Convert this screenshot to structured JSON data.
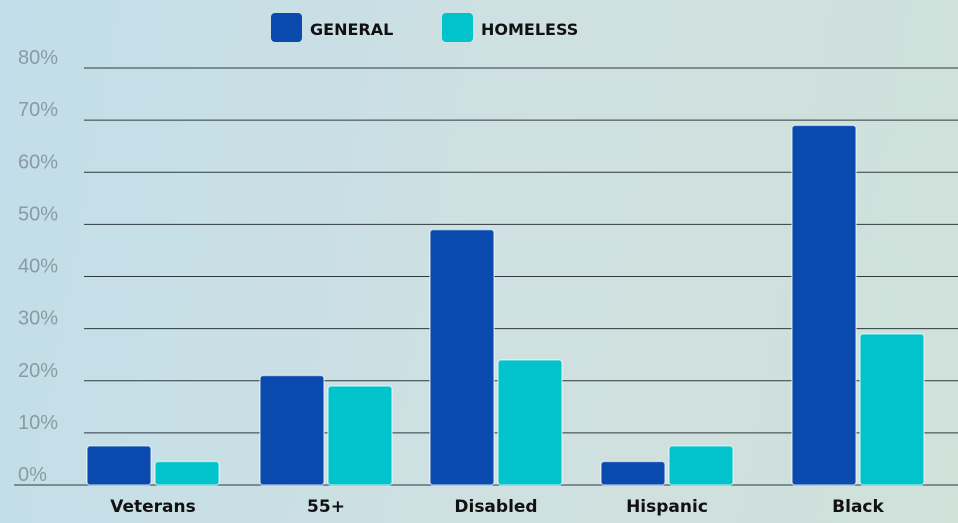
{
  "chart_data": {
    "type": "bar",
    "categories": [
      "Veterans",
      "55+",
      "Disabled",
      "Hispanic",
      "Black"
    ],
    "series": [
      {
        "name": "GENERAL",
        "color": "#0a4aae",
        "values": [
          7.5,
          21,
          49,
          4.5,
          69
        ]
      },
      {
        "name": "HOMELESS",
        "color": "#00c3cc",
        "values": [
          4.5,
          19,
          24,
          7.5,
          29
        ]
      }
    ],
    "ylim": [
      0,
      80
    ],
    "yticks": [
      {
        "value": 0,
        "label": "0%"
      },
      {
        "value": 10,
        "label": "10%"
      },
      {
        "value": 20,
        "label": "20%"
      },
      {
        "value": 30,
        "label": "30%"
      },
      {
        "value": 40,
        "label": "40%"
      },
      {
        "value": 50,
        "label": "50%"
      },
      {
        "value": 60,
        "label": "60%"
      },
      {
        "value": 70,
        "label": "70%"
      },
      {
        "value": 80,
        "label": "80%"
      }
    ],
    "grid": true,
    "legend_position": "top-center"
  }
}
